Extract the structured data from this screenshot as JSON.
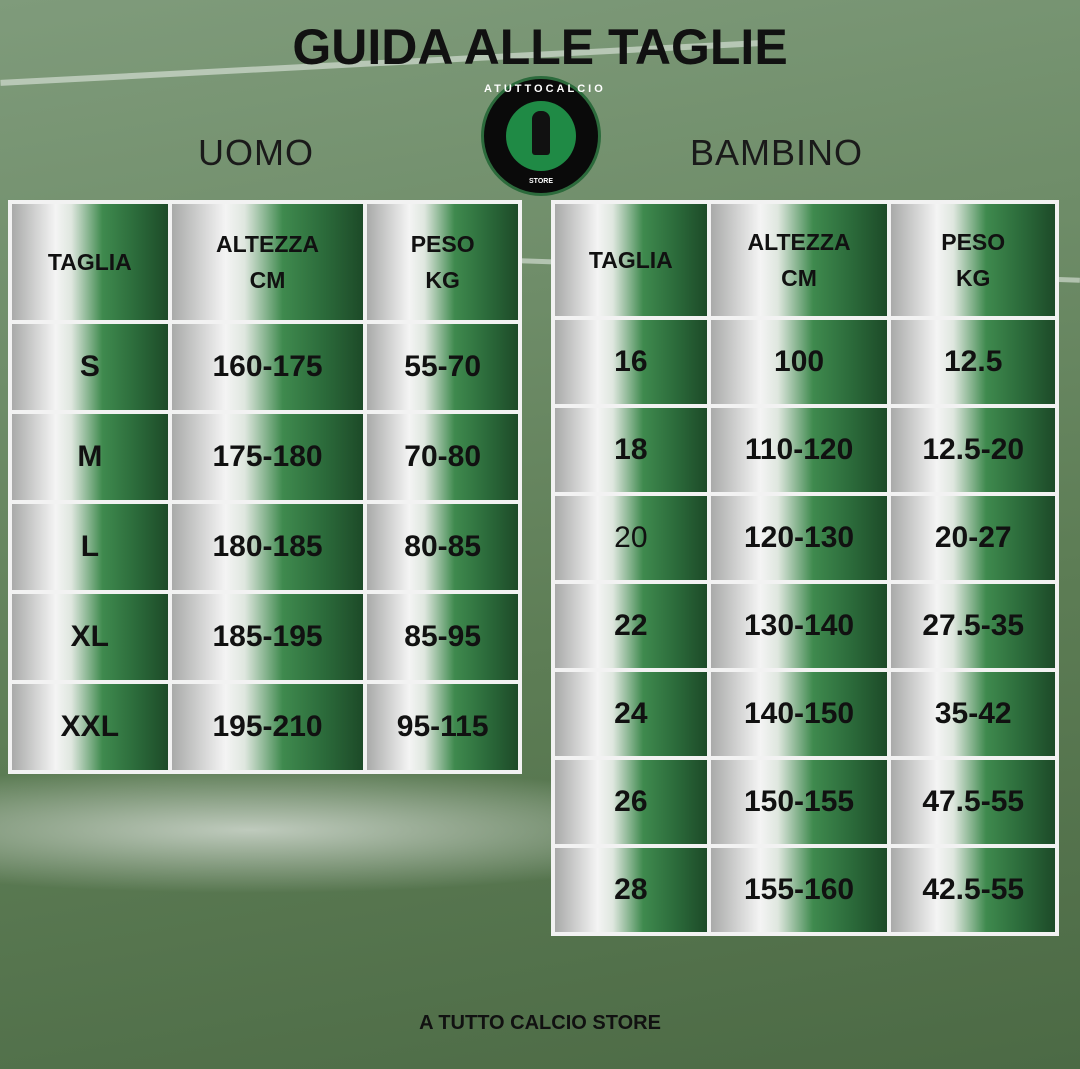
{
  "title": "GUIDA ALLE TAGLIE",
  "logo": {
    "ring_text": "ATUTTOCALCIO",
    "sub_text": "STORE"
  },
  "uomo": {
    "label": "UOMO",
    "headers": [
      "TAGLIA",
      "ALTEZZA CM",
      "PESO KG"
    ],
    "rows": [
      [
        "S",
        "160-175",
        "55-70"
      ],
      [
        "M",
        "175-180",
        "70-80"
      ],
      [
        "L",
        "180-185",
        "80-85"
      ],
      [
        "XL",
        "185-195",
        "85-95"
      ],
      [
        "XXL",
        "195-210",
        "95-115"
      ]
    ]
  },
  "bambino": {
    "label": "BAMBINO",
    "headers": [
      "TAGLIA",
      "ALTEZZA CM",
      "PESO KG"
    ],
    "rows": [
      [
        "16",
        "100",
        "12.5"
      ],
      [
        "18",
        "110-120",
        "12.5-20"
      ],
      [
        "20",
        "120-130",
        "20-27"
      ],
      [
        "22",
        "130-140",
        "27.5-35"
      ],
      [
        "24",
        "140-150",
        "35-42"
      ],
      [
        "26",
        "150-155",
        "47.5-55"
      ],
      [
        "28",
        "155-160",
        "42.5-55"
      ]
    ]
  },
  "footer": "A TUTTO CALCIO STORE",
  "colors": {
    "green_dark": "#1d4a28",
    "green": "#3f8a4e",
    "logo_green": "#1f8a45"
  }
}
